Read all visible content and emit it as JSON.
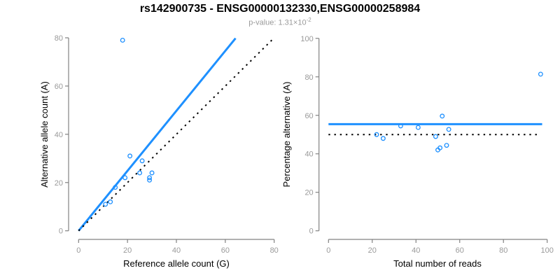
{
  "header": {
    "title": "rs142900735 - ENSG00000132330,ENSG00000258984",
    "subtitle_prefix": "p-value: 1.31×10",
    "subtitle_exponent": "-2"
  },
  "colors": {
    "accent_blue": "#1e90ff",
    "dotted_black": "#000000",
    "axis_gray": "#828282",
    "tick_label_gray": "#9a9a9a",
    "axis_title_black": "#000000"
  },
  "chart_data": [
    {
      "type": "scatter",
      "name": "allele-counts-panel",
      "xlabel": "Reference allele count (G)",
      "ylabel": "Alternative allele count (A)",
      "xlim": [
        0,
        80
      ],
      "ylim": [
        0,
        80
      ],
      "xticks": [
        0,
        20,
        40,
        60,
        80
      ],
      "yticks": [
        0,
        20,
        40,
        60,
        80
      ],
      "grid": false,
      "points": [
        {
          "x": 18,
          "y": 79
        },
        {
          "x": 21,
          "y": 31
        },
        {
          "x": 26,
          "y": 29
        },
        {
          "x": 25,
          "y": 24
        },
        {
          "x": 30,
          "y": 24
        },
        {
          "x": 29,
          "y": 22
        },
        {
          "x": 29,
          "y": 21
        },
        {
          "x": 19,
          "y": 22
        },
        {
          "x": 15,
          "y": 18
        },
        {
          "x": 13,
          "y": 12
        },
        {
          "x": 11,
          "y": 11
        }
      ],
      "lines": [
        {
          "name": "fitted-ratio-line",
          "style": "solid",
          "color": "#1e90ff",
          "from": [
            0,
            0
          ],
          "to": [
            64.2,
            79.8
          ]
        },
        {
          "name": "identity-line",
          "style": "dotted",
          "color": "#000000",
          "from": [
            0,
            0
          ],
          "to": [
            79.3,
            79.3
          ]
        }
      ]
    },
    {
      "type": "scatter",
      "name": "percentage-panel",
      "xlabel": "Total number of reads",
      "ylabel": "Percentage alternative (A)",
      "xlim": [
        0,
        100
      ],
      "ylim": [
        0,
        100
      ],
      "xticks": [
        0,
        20,
        40,
        60,
        80,
        100
      ],
      "yticks": [
        0,
        20,
        40,
        60,
        80,
        100
      ],
      "grid": false,
      "points": [
        {
          "x": 97,
          "y": 81.4
        },
        {
          "x": 52,
          "y": 59.6
        },
        {
          "x": 55,
          "y": 52.7
        },
        {
          "x": 49,
          "y": 49
        },
        {
          "x": 54,
          "y": 44.4
        },
        {
          "x": 51,
          "y": 43.1
        },
        {
          "x": 50,
          "y": 42
        },
        {
          "x": 41,
          "y": 53.7
        },
        {
          "x": 33,
          "y": 54.5
        },
        {
          "x": 25,
          "y": 48
        },
        {
          "x": 22,
          "y": 50
        }
      ],
      "lines": [
        {
          "name": "mean-percentage-line",
          "style": "solid",
          "color": "#1e90ff",
          "from": [
            0,
            55.4
          ],
          "to": [
            97.7,
            55.4
          ]
        },
        {
          "name": "fifty-percent-line",
          "style": "dotted",
          "color": "#000000",
          "from": [
            0,
            50
          ],
          "to": [
            95.3,
            50
          ]
        }
      ]
    }
  ]
}
